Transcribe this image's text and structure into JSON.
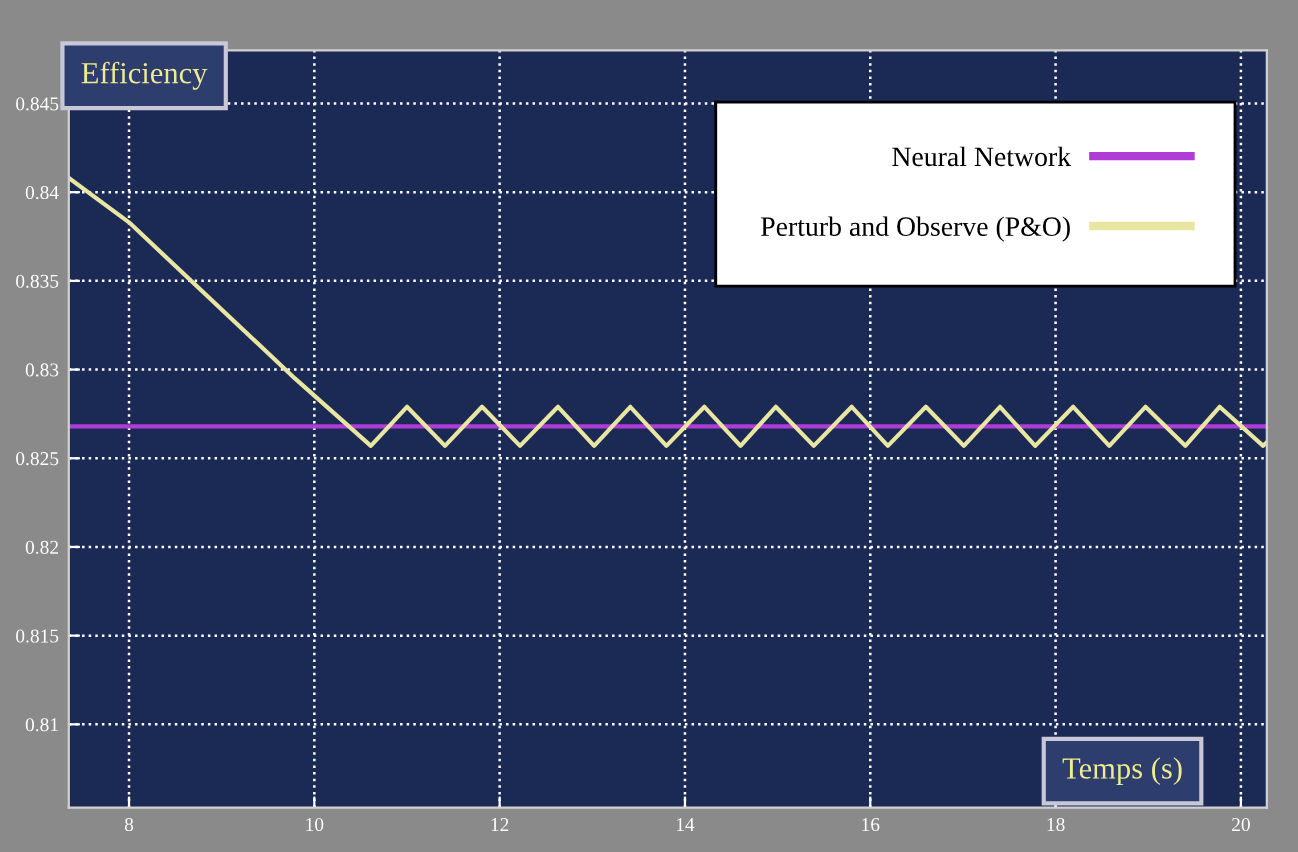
{
  "chart_data": {
    "type": "line",
    "xlabel": "Temps (s)",
    "ylabel": "Efficiency",
    "xlim": [
      7.35,
      20.28
    ],
    "ylim": [
      0.8053,
      0.848
    ],
    "xticks": [
      8,
      10,
      12,
      14,
      16,
      18,
      20
    ],
    "yticks": [
      0.81,
      0.815,
      0.82,
      0.825,
      0.83,
      0.835,
      0.84,
      0.845
    ],
    "grid": true,
    "legend": "top right",
    "line_style": "solid",
    "marker": "none",
    "series": [
      {
        "name": "Neural Network",
        "color": "#b03cd8",
        "x": [
          7.35,
          20.28
        ],
        "values": [
          0.8268,
          0.8268
        ]
      },
      {
        "name": "Perturb and Observe (P&O)",
        "color": "#e8e6a0",
        "x": [
          7.35,
          8.0,
          9.79,
          10.61,
          11.0,
          11.41,
          11.81,
          12.22,
          12.63,
          13.02,
          13.41,
          13.8,
          14.21,
          14.6,
          14.98,
          15.39,
          15.8,
          16.19,
          16.6,
          17.01,
          17.4,
          17.78,
          18.19,
          18.58,
          18.97,
          19.4,
          19.77,
          20.24,
          20.28
        ],
        "values": [
          0.8408,
          0.8383,
          0.8295,
          0.8257,
          0.8279,
          0.8257,
          0.8279,
          0.8257,
          0.8279,
          0.8257,
          0.8279,
          0.8257,
          0.8279,
          0.8257,
          0.8279,
          0.8257,
          0.8279,
          0.8257,
          0.8279,
          0.8257,
          0.8279,
          0.8257,
          0.8279,
          0.8257,
          0.8279,
          0.8257,
          0.8279,
          0.8257,
          0.8259
        ]
      }
    ]
  }
}
